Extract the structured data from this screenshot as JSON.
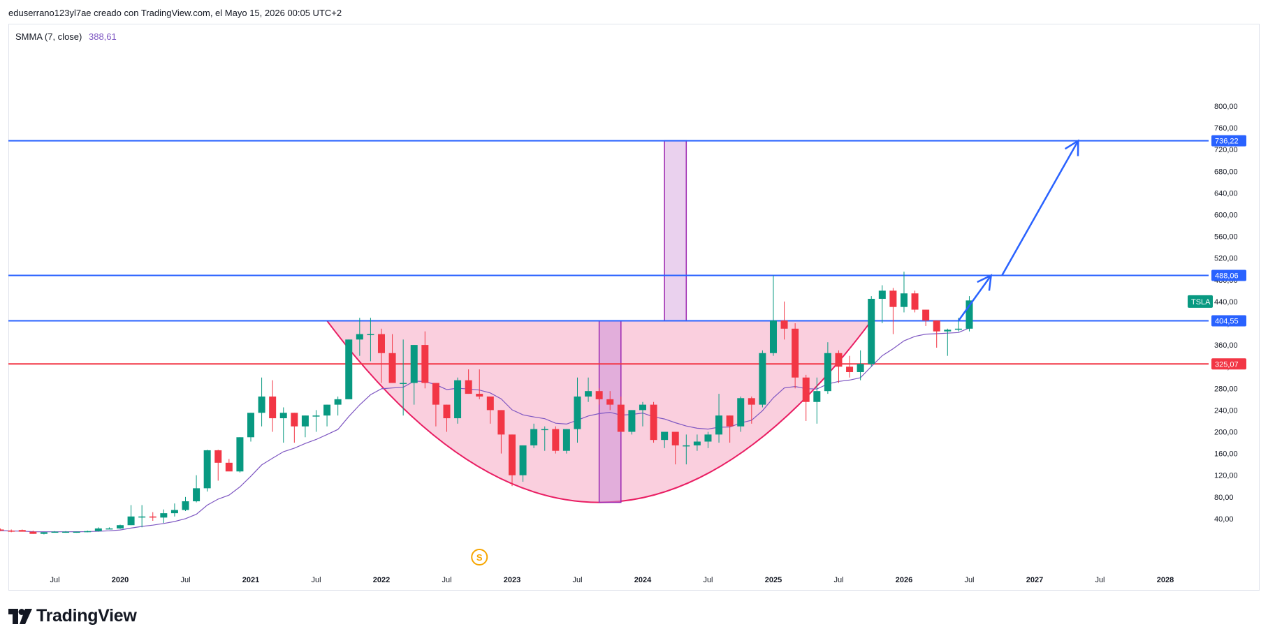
{
  "header": {
    "text": "eduserrano123yl7ae creado con TradingView.com, el Mayo 15, 2026 00:05 UTC+2"
  },
  "legend": {
    "label": "SMMA (7, close)",
    "value": "388,61"
  },
  "footer": {
    "brand": "TradingView"
  },
  "colors": {
    "up": "#089981",
    "down": "#f23645",
    "smma": "#7e57c2",
    "hline_blue": "#2962ff",
    "hline_red": "#f23645",
    "cup_fill": "#f8bbd0",
    "cup_stroke": "#e91e63",
    "rect_purple_fill": "#e1bee7",
    "rect_purple_stroke": "#9c27b0",
    "arrow": "#2962ff",
    "ticker_badge": "#089981",
    "dividend_icon": "#f7a600"
  },
  "chart_data": {
    "type": "candlestick",
    "symbol": "TSLA",
    "interval": "monthly",
    "y_ticks": [
      "800,00",
      "760,00",
      "720,00",
      "680,00",
      "640,00",
      "600,00",
      "560,00",
      "520,00",
      "480,00",
      "440,00",
      "400,00",
      "360,00",
      "320,00",
      "280,00",
      "240,00",
      "200,00",
      "160,00",
      "120,00",
      "80,00",
      "40,00"
    ],
    "ylim": [
      0,
      800
    ],
    "x_ticks": [
      {
        "label": "Jul",
        "date": "2019-07",
        "bold": false
      },
      {
        "label": "2020",
        "date": "2020-01",
        "bold": true
      },
      {
        "label": "Jul",
        "date": "2020-07",
        "bold": false
      },
      {
        "label": "2021",
        "date": "2021-01",
        "bold": true
      },
      {
        "label": "Jul",
        "date": "2021-07",
        "bold": false
      },
      {
        "label": "2022",
        "date": "2022-01",
        "bold": true
      },
      {
        "label": "Jul",
        "date": "2022-07",
        "bold": false
      },
      {
        "label": "2023",
        "date": "2023-01",
        "bold": true
      },
      {
        "label": "Jul",
        "date": "2023-07",
        "bold": false
      },
      {
        "label": "2024",
        "date": "2024-01",
        "bold": true
      },
      {
        "label": "Jul",
        "date": "2024-07",
        "bold": false
      },
      {
        "label": "2025",
        "date": "2025-01",
        "bold": true
      },
      {
        "label": "Jul",
        "date": "2025-07",
        "bold": false
      },
      {
        "label": "2026",
        "date": "2026-01",
        "bold": true
      },
      {
        "label": "Jul",
        "date": "2026-07",
        "bold": false
      },
      {
        "label": "2027",
        "date": "2027-01",
        "bold": true
      },
      {
        "label": "Jul",
        "date": "2027-07",
        "bold": false
      },
      {
        "label": "2028",
        "date": "2028-01",
        "bold": true
      }
    ],
    "start_month": "2019-01",
    "candles": [
      {
        "o": 20,
        "h": 23,
        "l": 17,
        "c": 18
      },
      {
        "o": 20,
        "h": 22,
        "l": 17,
        "c": 18
      },
      {
        "o": 18,
        "h": 20,
        "l": 15,
        "c": 16
      },
      {
        "o": 19,
        "h": 20,
        "l": 17,
        "c": 16
      },
      {
        "o": 16,
        "h": 18,
        "l": 12,
        "c": 12
      },
      {
        "o": 12,
        "h": 15,
        "l": 11,
        "c": 15
      },
      {
        "o": 15,
        "h": 17,
        "l": 15,
        "c": 16
      },
      {
        "o": 16,
        "h": 17,
        "l": 14,
        "c": 16
      },
      {
        "o": 16,
        "h": 16,
        "l": 14,
        "c": 16
      },
      {
        "o": 16,
        "h": 18,
        "l": 15,
        "c": 17
      },
      {
        "o": 17,
        "h": 24,
        "l": 16,
        "c": 22
      },
      {
        "o": 22,
        "h": 24,
        "l": 21,
        "c": 22
      },
      {
        "o": 22,
        "h": 29,
        "l": 21,
        "c": 28
      },
      {
        "o": 28,
        "h": 65,
        "l": 28,
        "c": 44
      },
      {
        "o": 44,
        "h": 65,
        "l": 24,
        "c": 44
      },
      {
        "o": 44,
        "h": 52,
        "l": 36,
        "c": 42
      },
      {
        "o": 42,
        "h": 57,
        "l": 32,
        "c": 50
      },
      {
        "o": 50,
        "h": 68,
        "l": 44,
        "c": 56
      },
      {
        "o": 56,
        "h": 80,
        "l": 54,
        "c": 72
      },
      {
        "o": 72,
        "h": 120,
        "l": 70,
        "c": 96
      },
      {
        "o": 96,
        "h": 167,
        "l": 90,
        "c": 166
      },
      {
        "o": 166,
        "h": 167,
        "l": 110,
        "c": 143
      },
      {
        "o": 143,
        "h": 150,
        "l": 128,
        "c": 127
      },
      {
        "o": 127,
        "h": 190,
        "l": 125,
        "c": 190
      },
      {
        "o": 190,
        "h": 235,
        "l": 182,
        "c": 235
      },
      {
        "o": 235,
        "h": 300,
        "l": 210,
        "c": 265
      },
      {
        "o": 265,
        "h": 295,
        "l": 200,
        "c": 225
      },
      {
        "o": 225,
        "h": 245,
        "l": 180,
        "c": 235
      },
      {
        "o": 235,
        "h": 235,
        "l": 180,
        "c": 210
      },
      {
        "o": 210,
        "h": 230,
        "l": 190,
        "c": 230
      },
      {
        "o": 230,
        "h": 240,
        "l": 200,
        "c": 230
      },
      {
        "o": 230,
        "h": 250,
        "l": 210,
        "c": 250
      },
      {
        "o": 250,
        "h": 265,
        "l": 230,
        "c": 260
      },
      {
        "o": 260,
        "h": 370,
        "l": 260,
        "c": 370
      },
      {
        "o": 370,
        "h": 410,
        "l": 340,
        "c": 380
      },
      {
        "o": 380,
        "h": 410,
        "l": 330,
        "c": 380
      },
      {
        "o": 380,
        "h": 390,
        "l": 290,
        "c": 345
      },
      {
        "o": 345,
        "h": 380,
        "l": 290,
        "c": 290
      },
      {
        "o": 290,
        "h": 370,
        "l": 230,
        "c": 290
      },
      {
        "o": 290,
        "h": 360,
        "l": 250,
        "c": 360
      },
      {
        "o": 360,
        "h": 385,
        "l": 280,
        "c": 290
      },
      {
        "o": 290,
        "h": 290,
        "l": 210,
        "c": 250
      },
      {
        "o": 250,
        "h": 250,
        "l": 200,
        "c": 225
      },
      {
        "o": 225,
        "h": 300,
        "l": 215,
        "c": 295
      },
      {
        "o": 295,
        "h": 315,
        "l": 270,
        "c": 270
      },
      {
        "o": 270,
        "h": 315,
        "l": 260,
        "c": 265
      },
      {
        "o": 265,
        "h": 265,
        "l": 215,
        "c": 240
      },
      {
        "o": 240,
        "h": 240,
        "l": 160,
        "c": 195
      },
      {
        "o": 195,
        "h": 195,
        "l": 100,
        "c": 120
      },
      {
        "o": 120,
        "h": 175,
        "l": 108,
        "c": 175
      },
      {
        "o": 175,
        "h": 215,
        "l": 170,
        "c": 205
      },
      {
        "o": 205,
        "h": 210,
        "l": 165,
        "c": 205
      },
      {
        "o": 205,
        "h": 210,
        "l": 160,
        "c": 165
      },
      {
        "o": 165,
        "h": 205,
        "l": 160,
        "c": 205
      },
      {
        "o": 205,
        "h": 300,
        "l": 180,
        "c": 265
      },
      {
        "o": 265,
        "h": 300,
        "l": 255,
        "c": 275
      },
      {
        "o": 275,
        "h": 280,
        "l": 250,
        "c": 260
      },
      {
        "o": 260,
        "h": 275,
        "l": 240,
        "c": 250
      },
      {
        "o": 250,
        "h": 265,
        "l": 200,
        "c": 200
      },
      {
        "o": 200,
        "h": 240,
        "l": 195,
        "c": 240
      },
      {
        "o": 240,
        "h": 255,
        "l": 210,
        "c": 250
      },
      {
        "o": 250,
        "h": 255,
        "l": 180,
        "c": 185
      },
      {
        "o": 185,
        "h": 200,
        "l": 170,
        "c": 200
      },
      {
        "o": 200,
        "h": 200,
        "l": 140,
        "c": 175
      },
      {
        "o": 175,
        "h": 195,
        "l": 140,
        "c": 175
      },
      {
        "o": 175,
        "h": 195,
        "l": 165,
        "c": 182
      },
      {
        "o": 182,
        "h": 200,
        "l": 170,
        "c": 195
      },
      {
        "o": 195,
        "h": 270,
        "l": 180,
        "c": 230
      },
      {
        "o": 230,
        "h": 230,
        "l": 180,
        "c": 210
      },
      {
        "o": 210,
        "h": 265,
        "l": 200,
        "c": 262
      },
      {
        "o": 262,
        "h": 265,
        "l": 215,
        "c": 250
      },
      {
        "o": 250,
        "h": 350,
        "l": 245,
        "c": 345
      },
      {
        "o": 345,
        "h": 488,
        "l": 340,
        "c": 405
      },
      {
        "o": 405,
        "h": 440,
        "l": 370,
        "c": 390
      },
      {
        "o": 390,
        "h": 400,
        "l": 280,
        "c": 300
      },
      {
        "o": 300,
        "h": 305,
        "l": 220,
        "c": 255
      },
      {
        "o": 255,
        "h": 300,
        "l": 215,
        "c": 275
      },
      {
        "o": 275,
        "h": 365,
        "l": 270,
        "c": 345
      },
      {
        "o": 345,
        "h": 350,
        "l": 290,
        "c": 320
      },
      {
        "o": 320,
        "h": 340,
        "l": 300,
        "c": 310
      },
      {
        "o": 310,
        "h": 350,
        "l": 295,
        "c": 325
      },
      {
        "o": 325,
        "h": 450,
        "l": 320,
        "c": 445
      },
      {
        "o": 445,
        "h": 470,
        "l": 400,
        "c": 460
      },
      {
        "o": 460,
        "h": 465,
        "l": 380,
        "c": 430
      },
      {
        "o": 430,
        "h": 495,
        "l": 420,
        "c": 455
      },
      {
        "o": 455,
        "h": 460,
        "l": 420,
        "c": 425
      },
      {
        "o": 425,
        "h": 425,
        "l": 395,
        "c": 405
      },
      {
        "o": 405,
        "h": 405,
        "l": 355,
        "c": 385
      },
      {
        "o": 385,
        "h": 390,
        "l": 340,
        "c": 388
      },
      {
        "o": 388,
        "h": 410,
        "l": 385,
        "c": 390
      },
      {
        "o": 390,
        "h": 450,
        "l": 385,
        "c": 442
      }
    ],
    "smma": {
      "label": "SMMA (7, close)",
      "last": 388.61
    },
    "horizontal_lines": [
      {
        "value": 736.22,
        "label": "736,22",
        "color": "#2962ff"
      },
      {
        "value": 488.06,
        "label": "488,06",
        "color": "#2962ff"
      },
      {
        "value": 404.55,
        "label": "404,55",
        "color": "#2962ff"
      },
      {
        "value": 325.07,
        "label": "325,07",
        "color": "#f23645"
      }
    ],
    "cup": {
      "left": {
        "date": "2021-08",
        "value": 404.55
      },
      "right": {
        "date": "2025-10",
        "value": 404.55
      },
      "bottom_value": 70
    },
    "rects": [
      {
        "from": "2023-09",
        "to": "2023-11",
        "top": 404.55,
        "bottom": 70
      },
      {
        "from": "2024-03",
        "to": "2024-05",
        "top": 736.22,
        "bottom": 404.55
      }
    ],
    "projection_arrows": [
      {
        "from": {
          "date": "2026-06",
          "value": 404.55
        },
        "to": {
          "date": "2026-09",
          "value": 488.06
        }
      },
      {
        "from": {
          "date": "2026-10",
          "value": 488.06
        },
        "to": {
          "date": "2027-05",
          "value": 736.22
        }
      }
    ],
    "ticker_badge": {
      "text": "TSLA",
      "value": 440
    },
    "dividend_marker": {
      "date": "2022-10",
      "text": "S"
    }
  }
}
